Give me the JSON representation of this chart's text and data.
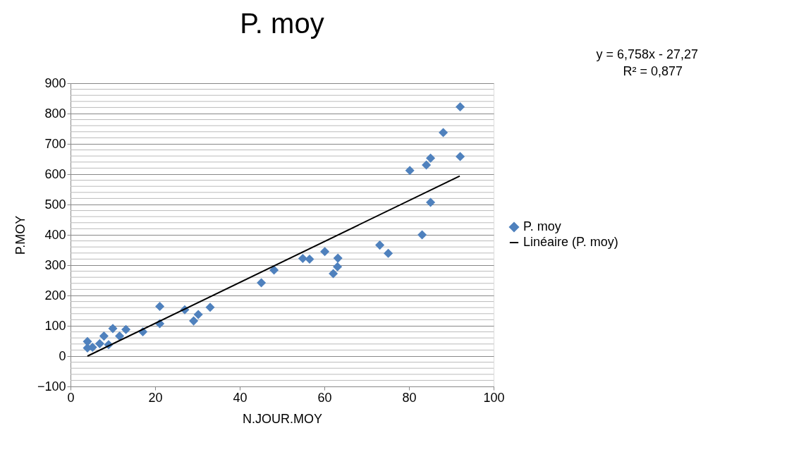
{
  "chart_data": {
    "type": "scatter",
    "title": "P. moy",
    "xlabel": "N.JOUR.MOY",
    "ylabel": "P.MOY",
    "xlim": [
      0,
      100
    ],
    "xticks": [
      0,
      20,
      40,
      60,
      80,
      100
    ],
    "ylim": [
      -100,
      900
    ],
    "yticks": [
      -100,
      0,
      100,
      200,
      300,
      400,
      500,
      600,
      700,
      800,
      900
    ],
    "grid": "y",
    "legend": "right",
    "annotations": [
      "y = 6,758x - 27,27",
      "R² = 0,877"
    ],
    "series": [
      {
        "name": "P. moy",
        "color": "#4f81bd",
        "marker": "diamond",
        "x": [
          4.0,
          4.0,
          5.2,
          6.9,
          7.9,
          9.0,
          10.0,
          11.6,
          13.1,
          17.1,
          21.1,
          21.1,
          27.0,
          29.1,
          30.2,
          33.0,
          45.1,
          48.1,
          54.9,
          56.5,
          60.1,
          63.2,
          63.1,
          62.1,
          73.1,
          75.1,
          80.2,
          83.1,
          84.1,
          85.1,
          85.1,
          88.1,
          92.1,
          92.1
        ],
        "values": [
          48,
          27,
          29,
          41,
          66,
          38,
          91,
          66,
          88,
          80,
          164,
          107,
          153,
          116,
          137,
          161,
          242,
          284,
          322,
          320,
          345,
          323,
          295,
          272,
          366,
          339,
          612,
          400,
          630,
          653,
          507,
          737,
          822,
          658
        ]
      },
      {
        "name": "Linéaire (P. moy)",
        "type": "line",
        "color": "#000000",
        "x": [
          4,
          92
        ],
        "values": [
          0,
          594
        ]
      }
    ]
  }
}
